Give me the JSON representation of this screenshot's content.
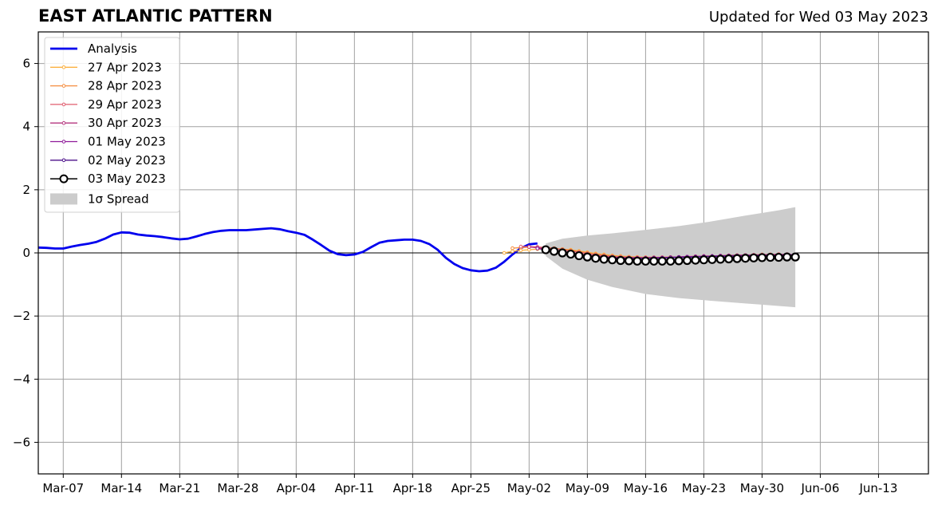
{
  "chart_data": {
    "type": "line",
    "title": "EAST ATLANTIC PATTERN",
    "subtitle": "Updated for Wed 03 May 2023",
    "xlabel": "",
    "ylabel": "",
    "x_range": [
      "2023-03-04",
      "2023-06-19"
    ],
    "ylim": [
      -7,
      7
    ],
    "y_ticks": [
      -6,
      -4,
      -2,
      0,
      2,
      4,
      6
    ],
    "y_tick_labels": [
      "−6",
      "−4",
      "−2",
      "0",
      "2",
      "4",
      "6"
    ],
    "x_ticks": [
      "2023-03-07",
      "2023-03-14",
      "2023-03-21",
      "2023-03-28",
      "2023-04-04",
      "2023-04-11",
      "2023-04-18",
      "2023-04-25",
      "2023-05-02",
      "2023-05-09",
      "2023-05-16",
      "2023-05-23",
      "2023-05-30",
      "2023-06-06",
      "2023-06-13"
    ],
    "x_tick_labels": [
      "Mar-07",
      "Mar-14",
      "Mar-21",
      "Mar-28",
      "Apr-04",
      "Apr-11",
      "Apr-18",
      "Apr-25",
      "May-02",
      "May-09",
      "May-16",
      "May-23",
      "May-30",
      "Jun-06",
      "Jun-13"
    ],
    "grid": true,
    "legend_position": "top-left",
    "series": [
      {
        "name": "Analysis",
        "color": "#0000ee",
        "x": [
          "2023-03-04",
          "2023-03-05",
          "2023-03-06",
          "2023-03-07",
          "2023-03-08",
          "2023-03-09",
          "2023-03-10",
          "2023-03-11",
          "2023-03-12",
          "2023-03-13",
          "2023-03-14",
          "2023-03-15",
          "2023-03-16",
          "2023-03-17",
          "2023-03-18",
          "2023-03-19",
          "2023-03-20",
          "2023-03-21",
          "2023-03-22",
          "2023-03-23",
          "2023-03-24",
          "2023-03-25",
          "2023-03-26",
          "2023-03-27",
          "2023-03-28",
          "2023-03-29",
          "2023-03-30",
          "2023-03-31",
          "2023-04-01",
          "2023-04-02",
          "2023-04-03",
          "2023-04-04",
          "2023-04-05",
          "2023-04-06",
          "2023-04-07",
          "2023-04-08",
          "2023-04-09",
          "2023-04-10",
          "2023-04-11",
          "2023-04-12",
          "2023-04-13",
          "2023-04-14",
          "2023-04-15",
          "2023-04-16",
          "2023-04-17",
          "2023-04-18",
          "2023-04-19",
          "2023-04-20",
          "2023-04-21",
          "2023-04-22",
          "2023-04-23",
          "2023-04-24",
          "2023-04-25",
          "2023-04-26",
          "2023-04-27",
          "2023-04-28",
          "2023-04-29",
          "2023-04-30",
          "2023-05-01",
          "2023-05-02",
          "2023-05-03"
        ],
        "values": [
          0.17,
          0.16,
          0.14,
          0.14,
          0.2,
          0.25,
          0.29,
          0.35,
          0.45,
          0.58,
          0.65,
          0.64,
          0.58,
          0.55,
          0.53,
          0.5,
          0.46,
          0.43,
          0.45,
          0.52,
          0.6,
          0.66,
          0.7,
          0.72,
          0.72,
          0.72,
          0.74,
          0.76,
          0.78,
          0.75,
          0.69,
          0.64,
          0.57,
          0.42,
          0.25,
          0.07,
          -0.04,
          -0.07,
          -0.05,
          0.03,
          0.18,
          0.32,
          0.38,
          0.4,
          0.42,
          0.42,
          0.38,
          0.28,
          0.1,
          -0.16,
          -0.35,
          -0.48,
          -0.55,
          -0.58,
          -0.56,
          -0.47,
          -0.28,
          -0.05,
          0.15,
          0.27,
          0.3
        ]
      },
      {
        "name": "27 Apr 2023",
        "color": "#fbb040",
        "x": [
          "2023-04-29",
          "2023-04-30",
          "2023-05-01",
          "2023-05-02",
          "2023-05-03",
          "2023-05-04",
          "2023-05-05",
          "2023-05-06",
          "2023-05-07",
          "2023-05-08",
          "2023-05-09",
          "2023-05-10",
          "2023-05-11",
          "2023-05-12",
          "2023-05-13",
          "2023-05-14",
          "2023-05-15",
          "2023-05-16",
          "2023-05-17",
          "2023-05-18",
          "2023-05-19",
          "2023-05-20",
          "2023-05-21",
          "2023-05-22",
          "2023-05-23",
          "2023-05-24",
          "2023-05-25",
          "2023-05-26",
          "2023-05-27",
          "2023-05-28",
          "2023-05-29",
          "2023-05-30",
          "2023-05-31"
        ],
        "values": [
          0.0,
          0.05,
          0.08,
          0.1,
          0.12,
          0.13,
          0.13,
          0.12,
          0.1,
          0.06,
          0.02,
          -0.02,
          -0.05,
          -0.08,
          -0.1,
          -0.12,
          -0.13,
          -0.14,
          -0.14,
          -0.14,
          -0.14,
          -0.13,
          -0.13,
          -0.12,
          -0.12,
          -0.11,
          -0.1,
          -0.1,
          -0.09,
          -0.08,
          -0.07,
          -0.06,
          -0.05
        ]
      },
      {
        "name": "28 Apr 2023",
        "color": "#f58d3f",
        "x": [
          "2023-04-30",
          "2023-05-01",
          "2023-05-02",
          "2023-05-03",
          "2023-05-04",
          "2023-05-05",
          "2023-05-06",
          "2023-05-07",
          "2023-05-08",
          "2023-05-09",
          "2023-05-10",
          "2023-05-11",
          "2023-05-12",
          "2023-05-13",
          "2023-05-14",
          "2023-05-15",
          "2023-05-16",
          "2023-05-17",
          "2023-05-18",
          "2023-05-19",
          "2023-05-20",
          "2023-05-21",
          "2023-05-22",
          "2023-05-23",
          "2023-05-24",
          "2023-05-25",
          "2023-05-26",
          "2023-05-27",
          "2023-05-28",
          "2023-05-29",
          "2023-05-30",
          "2023-05-31",
          "2023-06-01"
        ],
        "values": [
          0.15,
          0.17,
          0.18,
          0.18,
          0.17,
          0.15,
          0.12,
          0.08,
          0.04,
          0.0,
          -0.04,
          -0.07,
          -0.1,
          -0.12,
          -0.13,
          -0.14,
          -0.14,
          -0.14,
          -0.14,
          -0.13,
          -0.13,
          -0.12,
          -0.11,
          -0.1,
          -0.1,
          -0.09,
          -0.08,
          -0.07,
          -0.07,
          -0.06,
          -0.05,
          -0.05,
          -0.04
        ]
      },
      {
        "name": "29 Apr 2023",
        "color": "#e05d6f",
        "x": [
          "2023-05-01",
          "2023-05-02",
          "2023-05-03",
          "2023-05-04",
          "2023-05-05",
          "2023-05-06",
          "2023-05-07",
          "2023-05-08",
          "2023-05-09",
          "2023-05-10",
          "2023-05-11",
          "2023-05-12",
          "2023-05-13",
          "2023-05-14",
          "2023-05-15",
          "2023-05-16",
          "2023-05-17",
          "2023-05-18",
          "2023-05-19",
          "2023-05-20",
          "2023-05-21",
          "2023-05-22",
          "2023-05-23",
          "2023-05-24",
          "2023-05-25",
          "2023-05-26",
          "2023-05-27",
          "2023-05-28",
          "2023-05-29",
          "2023-05-30",
          "2023-05-31",
          "2023-06-01",
          "2023-06-02"
        ],
        "values": [
          0.2,
          0.2,
          0.19,
          0.17,
          0.14,
          0.1,
          0.06,
          0.02,
          -0.02,
          -0.06,
          -0.09,
          -0.11,
          -0.13,
          -0.14,
          -0.15,
          -0.15,
          -0.15,
          -0.14,
          -0.14,
          -0.13,
          -0.12,
          -0.11,
          -0.1,
          -0.1,
          -0.09,
          -0.08,
          -0.08,
          -0.07,
          -0.06,
          -0.06,
          -0.05,
          -0.05,
          -0.04
        ]
      },
      {
        "name": "30 Apr 2023",
        "color": "#b5367f",
        "x": [
          "2023-05-02",
          "2023-05-03",
          "2023-05-04",
          "2023-05-05",
          "2023-05-06",
          "2023-05-07",
          "2023-05-08",
          "2023-05-09",
          "2023-05-10",
          "2023-05-11",
          "2023-05-12",
          "2023-05-13",
          "2023-05-14",
          "2023-05-15",
          "2023-05-16",
          "2023-05-17",
          "2023-05-18",
          "2023-05-19",
          "2023-05-20",
          "2023-05-21",
          "2023-05-22",
          "2023-05-23",
          "2023-05-24",
          "2023-05-25",
          "2023-05-26",
          "2023-05-27",
          "2023-05-28",
          "2023-05-29",
          "2023-05-30",
          "2023-05-31",
          "2023-06-01",
          "2023-06-02",
          "2023-06-03"
        ],
        "values": [
          0.19,
          0.16,
          0.13,
          0.09,
          0.05,
          0.01,
          -0.03,
          -0.07,
          -0.1,
          -0.12,
          -0.14,
          -0.15,
          -0.16,
          -0.16,
          -0.16,
          -0.15,
          -0.15,
          -0.14,
          -0.13,
          -0.12,
          -0.11,
          -0.1,
          -0.1,
          -0.09,
          -0.08,
          -0.08,
          -0.07,
          -0.07,
          -0.06,
          -0.06,
          -0.05,
          -0.05,
          -0.05
        ]
      },
      {
        "name": "01 May 2023",
        "color": "#8e1a9a",
        "x": [
          "2023-05-03",
          "2023-05-04",
          "2023-05-05",
          "2023-05-06",
          "2023-05-07",
          "2023-05-08",
          "2023-05-09",
          "2023-05-10",
          "2023-05-11",
          "2023-05-12",
          "2023-05-13",
          "2023-05-14",
          "2023-05-15",
          "2023-05-16",
          "2023-05-17",
          "2023-05-18",
          "2023-05-19",
          "2023-05-20",
          "2023-05-21",
          "2023-05-22",
          "2023-05-23",
          "2023-05-24",
          "2023-05-25",
          "2023-05-26",
          "2023-05-27",
          "2023-05-28",
          "2023-05-29",
          "2023-05-30",
          "2023-05-31",
          "2023-06-01",
          "2023-06-02",
          "2023-06-03"
        ],
        "values": [
          0.14,
          0.1,
          0.06,
          0.02,
          -0.02,
          -0.06,
          -0.1,
          -0.12,
          -0.14,
          -0.15,
          -0.16,
          -0.16,
          -0.16,
          -0.16,
          -0.15,
          -0.15,
          -0.14,
          -0.13,
          -0.12,
          -0.12,
          -0.11,
          -0.1,
          -0.09,
          -0.09,
          -0.08,
          -0.08,
          -0.07,
          -0.07,
          -0.06,
          -0.06,
          -0.06,
          -0.05
        ]
      },
      {
        "name": "02 May 2023",
        "color": "#4b0f8a",
        "x": [
          "2023-05-04",
          "2023-05-05",
          "2023-05-06",
          "2023-05-07",
          "2023-05-08",
          "2023-05-09",
          "2023-05-10",
          "2023-05-11",
          "2023-05-12",
          "2023-05-13",
          "2023-05-14",
          "2023-05-15",
          "2023-05-16",
          "2023-05-17",
          "2023-05-18",
          "2023-05-19",
          "2023-05-20",
          "2023-05-21",
          "2023-05-22",
          "2023-05-23",
          "2023-05-24",
          "2023-05-25",
          "2023-05-26",
          "2023-05-27",
          "2023-05-28",
          "2023-05-29",
          "2023-05-30",
          "2023-05-31",
          "2023-06-01",
          "2023-06-02",
          "2023-06-03"
        ],
        "values": [
          0.08,
          0.04,
          0.0,
          -0.04,
          -0.08,
          -0.11,
          -0.14,
          -0.16,
          -0.17,
          -0.18,
          -0.18,
          -0.18,
          -0.17,
          -0.17,
          -0.16,
          -0.15,
          -0.14,
          -0.14,
          -0.13,
          -0.12,
          -0.11,
          -0.11,
          -0.1,
          -0.1,
          -0.09,
          -0.09,
          -0.08,
          -0.08,
          -0.08,
          -0.07,
          -0.07
        ]
      },
      {
        "name": "03 May 2023",
        "color": "#000000",
        "x": [
          "2023-05-04",
          "2023-05-05",
          "2023-05-06",
          "2023-05-07",
          "2023-05-08",
          "2023-05-09",
          "2023-05-10",
          "2023-05-11",
          "2023-05-12",
          "2023-05-13",
          "2023-05-14",
          "2023-05-15",
          "2023-05-16",
          "2023-05-17",
          "2023-05-18",
          "2023-05-19",
          "2023-05-20",
          "2023-05-21",
          "2023-05-22",
          "2023-05-23",
          "2023-05-24",
          "2023-05-25",
          "2023-05-26",
          "2023-05-27",
          "2023-05-28",
          "2023-05-29",
          "2023-05-30",
          "2023-05-31",
          "2023-06-01",
          "2023-06-02",
          "2023-06-03"
        ],
        "values": [
          0.1,
          0.05,
          0.0,
          -0.04,
          -0.09,
          -0.13,
          -0.17,
          -0.2,
          -0.22,
          -0.24,
          -0.25,
          -0.26,
          -0.26,
          -0.26,
          -0.26,
          -0.26,
          -0.25,
          -0.24,
          -0.23,
          -0.22,
          -0.21,
          -0.2,
          -0.19,
          -0.18,
          -0.17,
          -0.16,
          -0.15,
          -0.14,
          -0.14,
          -0.13,
          -0.13
        ]
      }
    ],
    "spread": {
      "name": "1σ Spread",
      "color": "#cccccc",
      "x": [
        "2023-05-04",
        "2023-05-06",
        "2023-05-09",
        "2023-05-12",
        "2023-05-16",
        "2023-05-20",
        "2023-05-24",
        "2023-05-28",
        "2023-06-01",
        "2023-06-03"
      ],
      "upper": [
        0.3,
        0.45,
        0.55,
        0.62,
        0.73,
        0.85,
        1.0,
        1.18,
        1.35,
        1.45
      ],
      "lower": [
        -0.1,
        -0.5,
        -0.85,
        -1.08,
        -1.3,
        -1.43,
        -1.52,
        -1.6,
        -1.68,
        -1.72
      ]
    }
  }
}
